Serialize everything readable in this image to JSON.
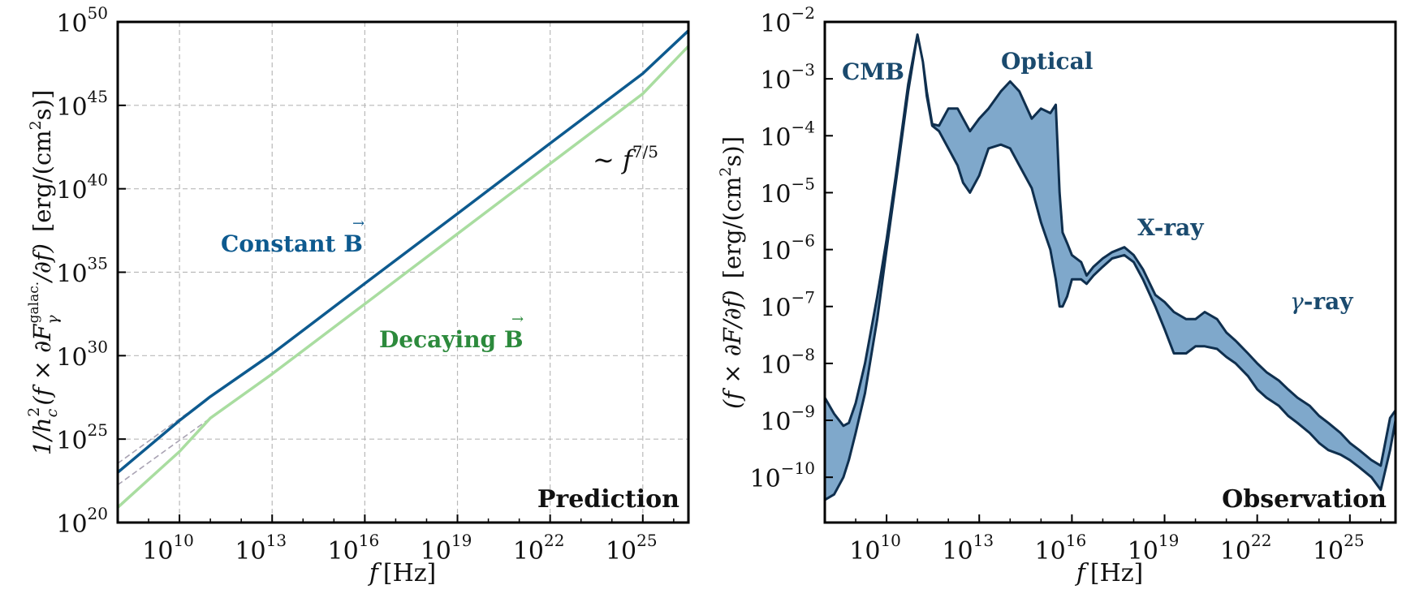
{
  "colors": {
    "constant": "#0d5a8f",
    "decaying": "#a9dda0",
    "constant_text": "#0d5a8f",
    "decaying_text": "#2c8a3c",
    "band_fill": "#7fa8cb",
    "band_stroke": "#0f2f4e",
    "obs_text": "#1a4a6e",
    "grid": "#b9b9b9",
    "asymptote": "#a9a3b3"
  },
  "chart_data": [
    {
      "type": "line",
      "name": "prediction",
      "xlabel_var": "f",
      "xlabel_unit": "[Hz]",
      "ylabel_left": "1/h",
      "ylabel_sub": "c",
      "ylabel_sup": "2",
      "ylabel_paren": "(f × ∂F",
      "ylabel_fsub": "γ",
      "ylabel_fsup": "galac.",
      "ylabel_tail": "/∂f)",
      "ylabel_unit_pre": "[erg/(cm",
      "ylabel_unit_sup": "2",
      "ylabel_unit_post": "s)]",
      "corner_label": "Prediction",
      "xscale": "log",
      "yscale": "log",
      "xlim": [
        100000000,
        3e+26
      ],
      "ylim": [
        1e+20,
        1e+50
      ],
      "grid": true,
      "x_ticks": [
        10000000000.0,
        10000000000000.0,
        1e+16,
        1e+19,
        1e+22,
        1e+25
      ],
      "x_tick_labels": [
        "10",
        "10",
        "10",
        "10",
        "10",
        "10"
      ],
      "x_tick_exps": [
        "10",
        "13",
        "16",
        "19",
        "22",
        "25"
      ],
      "y_ticks": [
        1e+20,
        1e+25,
        1e+30,
        1e+35,
        1e+40,
        1e+45,
        1e+50
      ],
      "y_tick_labels": [
        "10",
        "10",
        "10",
        "10",
        "10",
        "10",
        "10"
      ],
      "y_tick_exps": [
        "20",
        "25",
        "30",
        "35",
        "40",
        "45",
        "50"
      ],
      "series": [
        {
          "name": "Constant B",
          "color": "#0d5a8f",
          "x": [
            100000000,
            10000000000.0,
            100000000000,
            10000000000000.0,
            1e+16,
            1e+19,
            1e+22,
            1e+25,
            3e+26
          ],
          "y": [
            1e+23,
            1.3e+26,
            3.5e+27,
            1.3e+30,
            2.1e+34,
            3.2e+38,
            5.3e+42,
            8.1e+46,
            3e+49
          ]
        },
        {
          "name": "Decaying B",
          "color": "#a9dda0",
          "x": [
            100000000,
            10000000000.0,
            100000000000,
            10000000000000.0,
            1e+16,
            1e+19,
            1e+22,
            1e+25,
            3e+26
          ],
          "y": [
            8e+20,
            1.8e+24,
            1.8e+26,
            8e+28,
            1.26e+33,
            2e+37,
            3.2e+41,
            5e+45,
            3.5e+48
          ]
        }
      ],
      "asymptotes": [
        {
          "x": [
            100000000,
            100000000000
          ],
          "y": [
            3.5e+23,
            3.5e+27
          ]
        },
        {
          "x": [
            100000000,
            100000000000
          ],
          "y": [
            1.8e+22,
            1.8e+26
          ]
        }
      ],
      "annotations": {
        "constant_label_pre": "Constant ",
        "constant_label_b": "B",
        "decaying_label_pre": "Decaying ",
        "decaying_label_b": "B",
        "slope_label_pre": "∼ f",
        "slope_label_exp": "7/5"
      }
    },
    {
      "type": "area",
      "name": "observation",
      "xlabel_var": "f",
      "xlabel_unit": "[Hz]",
      "ylabel_paren": "(f × ∂F/∂f)",
      "ylabel_unit_pre": "[erg/(cm",
      "ylabel_unit_sup": "2",
      "ylabel_unit_post": "s)]",
      "corner_label": "Observation",
      "xscale": "log",
      "yscale": "log",
      "xlim": [
        100000000,
        3e+26
      ],
      "ylim": [
        1.6e-11,
        0.01
      ],
      "grid": false,
      "x_ticks": [
        10000000000.0,
        10000000000000.0,
        1e+16,
        1e+19,
        1e+22,
        1e+25
      ],
      "x_tick_labels": [
        "10",
        "10",
        "10",
        "10",
        "10",
        "10"
      ],
      "x_tick_exps": [
        "10",
        "13",
        "16",
        "19",
        "22",
        "25"
      ],
      "y_ticks": [
        1e-10,
        1e-09,
        1e-08,
        1e-07,
        1e-06,
        1e-05,
        0.0001,
        0.001,
        0.01
      ],
      "y_tick_labels": [
        "10",
        "10",
        "10",
        "10",
        "10",
        "10",
        "10",
        "10",
        "10"
      ],
      "y_tick_exps": [
        "−10",
        "−9",
        "−8",
        "−7",
        "−6",
        "−5",
        "−4",
        "−3",
        "−2"
      ],
      "band": {
        "x": [
          100000000,
          200000000,
          400000000,
          600000000,
          1000000000,
          2000000000,
          5000000000,
          10000000000,
          20000000000,
          50000000000,
          100000000000,
          150000000000,
          200000000000,
          300000000000,
          500000000000,
          1000000000000,
          2000000000000,
          3000000000000,
          5000000000000,
          10000000000000,
          20000000000000,
          50000000000000,
          100000000000000,
          200000000000000,
          500000000000000,
          1000000000000000,
          2000000000000000,
          3000000000000000,
          4000000000000000,
          5000000000000000,
          7000000000000000,
          10000000000000000,
          20000000000000000,
          30000000000000000,
          50000000000000000,
          100000000000000000,
          200000000000000000,
          500000000000000000,
          1000000000000000000,
          2000000000000000000,
          5000000000000000000,
          10000000000000000000,
          20000000000000000000,
          50000000000000000000,
          100000000000000000000,
          200000000000000000000,
          500000000000000000000,
          1000000000000000000000,
          2000000000000000000000,
          5000000000000000000000,
          10000000000000000000000,
          20000000000000000000000,
          50000000000000000000000,
          100000000000000000000000,
          200000000000000000000000,
          500000000000000000000000,
          1000000000000000000000000,
          2000000000000000000000000,
          5000000000000000000000000,
          10000000000000000000000000,
          20000000000000000000000000,
          50000000000000000000000000,
          100000000000000000000000000,
          200000000000000000000000000,
          300000000000000000000000000
        ],
        "upper": [
          2.5e-09,
          1.3e-09,
          8e-10,
          9e-10,
          2e-09,
          1e-08,
          1.5e-07,
          1.5e-06,
          2e-05,
          0.0008,
          0.006,
          0.002,
          0.0006,
          0.00016,
          0.00015,
          0.0003,
          0.0003,
          0.0002,
          0.00012,
          0.0002,
          0.0003,
          0.0006,
          0.0009,
          0.0006,
          0.0002,
          0.0003,
          0.00025,
          0.00035,
          1e-05,
          2e-06,
          1.3e-06,
          8e-07,
          6e-07,
          3.5e-07,
          5e-07,
          7e-07,
          9e-07,
          1.1e-06,
          8e-07,
          4.5e-07,
          1.6e-07,
          1.2e-07,
          8e-08,
          6e-08,
          6e-08,
          8e-08,
          6e-08,
          3.5e-08,
          2.5e-08,
          1.5e-08,
          1e-08,
          7e-09,
          5e-09,
          3.5e-09,
          2.5e-09,
          1.8e-09,
          1.2e-09,
          9e-10,
          6e-10,
          4e-10,
          3e-10,
          2e-10,
          1.6e-10,
          1.1e-09,
          1.5e-09
        ],
        "lower": [
          4e-11,
          5e-11,
          1e-10,
          2e-10,
          6e-10,
          3e-09,
          6e-08,
          1e-06,
          1.5e-05,
          0.0006,
          0.006,
          0.002,
          0.0005,
          0.00015,
          0.00012,
          6e-05,
          3e-05,
          1.5e-05,
          1e-05,
          2e-05,
          6e-05,
          7e-05,
          6e-05,
          3e-05,
          1.2e-05,
          3e-06,
          1e-06,
          3e-07,
          1e-07,
          1e-07,
          1.5e-07,
          3e-07,
          3e-07,
          2.5e-07,
          3.5e-07,
          5e-07,
          7e-07,
          8e-07,
          6e-07,
          3e-07,
          1e-07,
          4e-08,
          1.5e-08,
          1.5e-08,
          2e-08,
          2e-08,
          1.8e-08,
          1.3e-08,
          1e-08,
          6e-09,
          3.5e-09,
          2.5e-09,
          1.8e-09,
          1.2e-09,
          9e-10,
          6e-10,
          4e-10,
          3e-10,
          2.5e-10,
          2e-10,
          1.5e-10,
          1e-10,
          6e-11,
          3e-10,
          1e-09
        ]
      },
      "annotations": {
        "cmb": "CMB",
        "optical": "Optical",
        "xray": "X-ray",
        "gamma_pre": "γ",
        "gamma_post": "-ray"
      }
    }
  ]
}
